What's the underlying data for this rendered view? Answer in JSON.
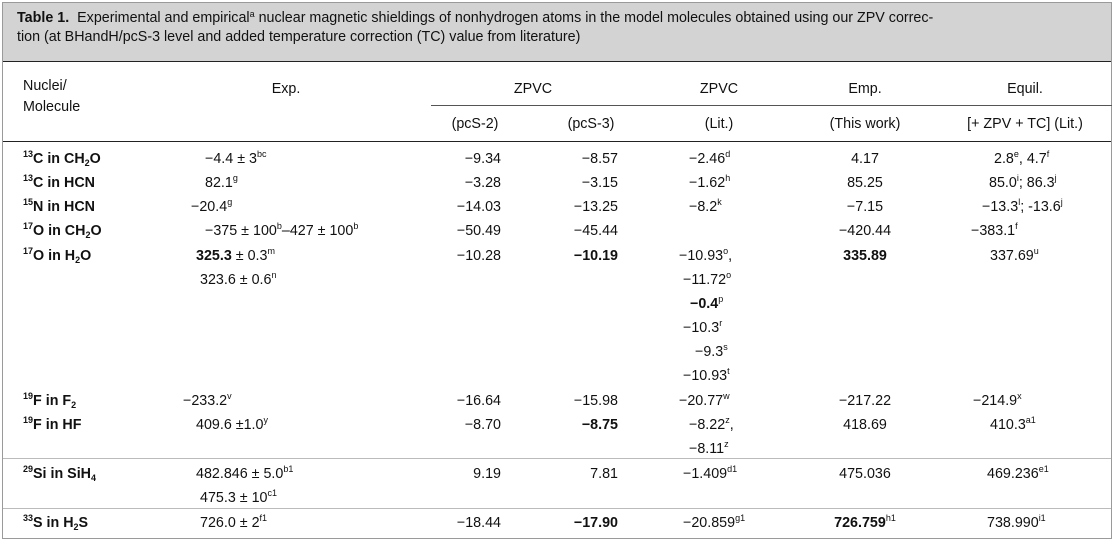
{
  "caption": {
    "label": "Table 1.",
    "text_before": "Experimental and empirical",
    "text_sup": "a",
    "text_after_line1": " nuclear magnetic shieldings of nonhydrogen atoms in the model molecules obtained using our ZPV correc-",
    "text_line2": "tion (at BHandH/pcS-3 level and added temperature correction (TC) value from literature)"
  },
  "headers": {
    "nuclei_line1": "Nuclei/",
    "nuclei_line2": "Molecule",
    "exp": "Exp.",
    "zpvc_group": "ZPVC",
    "zpvc_lit_top": "ZPVC",
    "emp": "Emp.",
    "equil": "Equil.",
    "pcs2": "(pcS-2)",
    "pcs3": "(pcS-3)",
    "lit": "(Lit.)",
    "this_work": "(This work)",
    "zpv_tc": "[+ ZPV + TC] (Lit.)"
  },
  "rows": [
    {
      "iso": "13",
      "el": "C in CH",
      "sub": "2",
      "tail": "O",
      "exp": "−4.4 ± 3",
      "exp_sup": "bc",
      "pcs2": "−9.34",
      "pcs3": "−8.57",
      "lit": "−2.46",
      "lit_sup": "d",
      "emp": "4.17",
      "equil": "2.8",
      "equil_sup": "e",
      "equil2": ", 4.7",
      "equil2_sup": "f"
    },
    {
      "iso": "13",
      "el": "C in HCN",
      "exp": "82.1",
      "exp_sup": "g",
      "pcs2": "−3.28",
      "pcs3": "−3.15",
      "lit": "−1.62",
      "lit_sup": "h",
      "emp": "85.25",
      "equil": "85.0",
      "equil_sup": "i",
      "equil2": "; 86.3",
      "equil2_sup": "j"
    },
    {
      "iso": "15",
      "el": "N in HCN",
      "exp": "−20.4",
      "exp_sup": "g",
      "pcs2": "−14.03",
      "pcs3": "−13.25",
      "lit": "−8.2",
      "lit_sup": "k",
      "emp": "−7.15",
      "equil": "−13.3",
      "equil_sup": "l",
      "equil2": "; -13.6",
      "equil2_sup": "j"
    },
    {
      "iso": "17",
      "el": "O in CH",
      "sub": "2",
      "tail": "O",
      "exp": "−375 ± 100",
      "exp_sup": "b",
      "exp_b": "–427 ± 100",
      "exp_b_sup": "b",
      "pcs2": "−50.49",
      "pcs3": "−45.44",
      "emp": "−420.44",
      "equil": "−383.1",
      "equil_sup": "f"
    },
    {
      "iso": "17",
      "el": "O in H",
      "sub": "2",
      "tail": "O",
      "exp": "325.3",
      "exp_rest": " ± 0.3",
      "exp_sup": "m",
      "exp_line2": "323.6 ± 0.6",
      "exp_line2_sup": "n",
      "pcs2": "−10.28",
      "pcs3": "−10.19",
      "lit_lines": [
        {
          "v": "−10.93",
          "s": "o",
          "t": ","
        },
        {
          "v": "−11.72",
          "s": "o",
          "t": ""
        },
        {
          "v": "−0.4",
          "s": "p",
          "t": ""
        },
        {
          "v": "−10.3",
          "s": "r",
          "t": ""
        },
        {
          "v": "−9.3",
          "s": "s",
          "t": ""
        },
        {
          "v": "−10.93",
          "s": "t",
          "t": ""
        }
      ],
      "emp": "335.89",
      "equil": "337.69",
      "equil_sup": "u"
    },
    {
      "iso": "19",
      "el": "F in F",
      "sub": "2",
      "exp": "−233.2",
      "exp_sup": "v",
      "pcs2": "−16.64",
      "pcs3": "−15.98",
      "lit": "−20.77",
      "lit_sup": "w",
      "emp": "−217.22",
      "equil": "−214.9",
      "equil_sup": "x"
    },
    {
      "iso": "19",
      "el": "F in HF",
      "exp": "409.6 ±1.0",
      "exp_sup": "y",
      "pcs2": "−8.70",
      "pcs3": "−8.75",
      "lit": "−8.22",
      "lit_sup": "z",
      "lit_tail": ",",
      "lit2": "−8.11",
      "lit2_sup": "z",
      "emp": "418.69",
      "equil": "410.3",
      "equil_sup": "a1"
    },
    {
      "iso": "29",
      "el": "Si in SiH",
      "sub": "4",
      "exp": "482.846 ± 5.0",
      "exp_sup": "b1",
      "exp_line2": "475.3 ± 10",
      "exp_line2_sup": "c1",
      "pcs2": "9.19",
      "pcs3": "7.81",
      "lit": "−1.409",
      "lit_sup": "d1",
      "emp": "475.036",
      "equil": "469.236",
      "equil_sup": "e1"
    },
    {
      "iso": "33",
      "el": "S in H",
      "sub": "2",
      "tail": "S",
      "exp": "726.0 ± 2",
      "exp_sup": "f1",
      "pcs2": "−18.44",
      "pcs3": "−17.90",
      "lit": "−20.859",
      "lit_sup": "g1",
      "emp": "726.759",
      "emp_sup": "h1",
      "equil": "738.990",
      "equil_sup": "i1"
    }
  ]
}
